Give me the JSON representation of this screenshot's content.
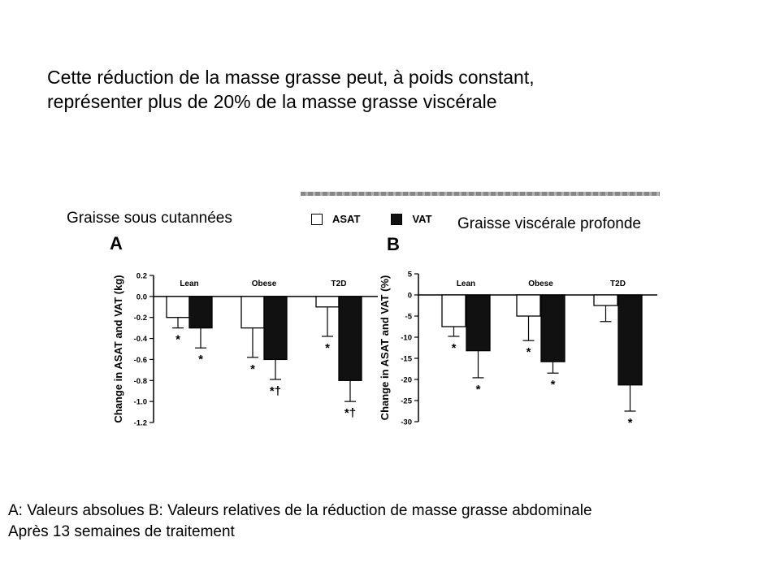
{
  "slide": {
    "headline": [
      "Cette réduction de la masse grasse peut, à poids constant,",
      "représenter plus de 20% de la masse grasse viscérale"
    ],
    "label_subcutaneous": "Graisse sous cutannées",
    "label_visceral": "Graisse viscérale profonde",
    "caption": [
      "A: Valeurs absolues B: Valeurs relatives de la réduction de masse grasse abdominale",
      "Après 13 semaines de traitement"
    ]
  },
  "legend": {
    "asat": "ASAT",
    "vat": "VAT"
  },
  "colors": {
    "asat": "#ffffff",
    "vat": "#111111",
    "axis": "#000000"
  },
  "chart_data": [
    {
      "type": "bar",
      "panel": "A",
      "categories": [
        "Lean",
        "Obese",
        "T2D"
      ],
      "ylabel": "Change in ASAT and VAT (kg)",
      "ylim": [
        -1.2,
        0.2
      ],
      "yticks": [
        0.2,
        0.0,
        -0.2,
        -0.4,
        -0.6,
        -0.8,
        -1.0,
        -1.2
      ],
      "ytick_labels": [
        "0.2",
        "0.0",
        "-0.2",
        "-0.4",
        "-0.6",
        "-0.8",
        "-1.0",
        "-1.2"
      ],
      "series": [
        {
          "name": "ASAT",
          "values": [
            -0.2,
            -0.3,
            -0.1
          ],
          "err_end": [
            -0.3,
            -0.58,
            -0.38
          ],
          "marks": [
            "*",
            "*",
            "*"
          ]
        },
        {
          "name": "VAT",
          "values": [
            -0.3,
            -0.6,
            -0.8
          ],
          "err_end": [
            -0.49,
            -0.79,
            -1.0
          ],
          "marks": [
            "*",
            "*†",
            "*†"
          ]
        }
      ]
    },
    {
      "type": "bar",
      "panel": "B",
      "categories": [
        "Lean",
        "Obese",
        "T2D"
      ],
      "ylabel": "Change in ASAT and VAT (%)",
      "ylim": [
        -30,
        5
      ],
      "yticks": [
        5,
        0,
        -5,
        -10,
        -15,
        -20,
        -25,
        -30
      ],
      "ytick_labels": [
        "5",
        "0",
        "-5",
        "-10",
        "-15",
        "-20",
        "-25",
        "-30"
      ],
      "series": [
        {
          "name": "ASAT",
          "values": [
            -7.5,
            -5.0,
            -2.5
          ],
          "err_end": [
            -9.8,
            -10.8,
            -6.3
          ],
          "marks": [
            "*",
            "*",
            ""
          ]
        },
        {
          "name": "VAT",
          "values": [
            -13.2,
            -15.8,
            -21.3
          ],
          "err_end": [
            -19.6,
            -18.5,
            -27.5
          ],
          "marks": [
            "*",
            "*",
            "*"
          ]
        }
      ]
    }
  ]
}
